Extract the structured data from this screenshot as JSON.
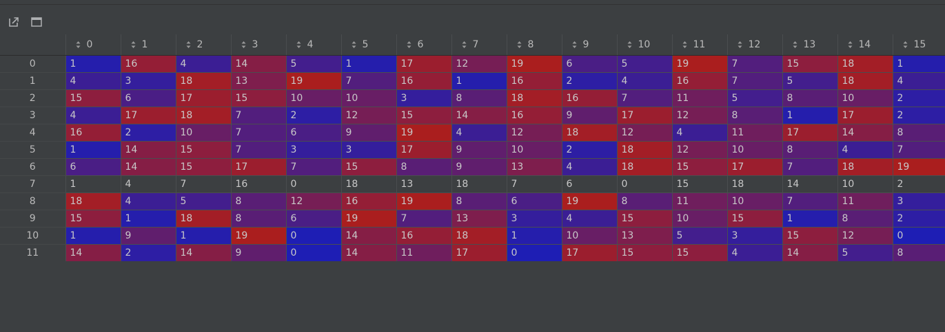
{
  "toolbar": {
    "open_in_window_icon": "external-open-icon",
    "maximize_icon": "window-maximize-icon"
  },
  "table": {
    "columns": [
      "0",
      "1",
      "2",
      "3",
      "4",
      "5",
      "6",
      "7",
      "8",
      "9",
      "10",
      "11",
      "12",
      "13",
      "14",
      "15"
    ],
    "row_labels": [
      "0",
      "1",
      "2",
      "3",
      "4",
      "5",
      "6",
      "7",
      "8",
      "9",
      "10",
      "11"
    ],
    "uncolored_rows": [
      7
    ],
    "rows": [
      [
        "1",
        "16",
        "4",
        "14",
        "5",
        "1",
        "17",
        "12",
        "19",
        "6",
        "5",
        "19",
        "7",
        "15",
        "18",
        "1"
      ],
      [
        "4",
        "3",
        "18",
        "13",
        "19",
        "7",
        "16",
        "1",
        "16",
        "2",
        "4",
        "16",
        "7",
        "5",
        "18",
        "4"
      ],
      [
        "15",
        "6",
        "17",
        "15",
        "10",
        "10",
        "3",
        "8",
        "18",
        "16",
        "7",
        "11",
        "5",
        "8",
        "10",
        "2"
      ],
      [
        "4",
        "17",
        "18",
        "7",
        "2",
        "12",
        "15",
        "14",
        "16",
        "9",
        "17",
        "12",
        "8",
        "1",
        "17",
        "2"
      ],
      [
        "16",
        "2",
        "10",
        "7",
        "6",
        "9",
        "19",
        "4",
        "12",
        "18",
        "12",
        "4",
        "11",
        "17",
        "14",
        "8"
      ],
      [
        "1",
        "14",
        "15",
        "7",
        "3",
        "3",
        "17",
        "9",
        "10",
        "2",
        "18",
        "12",
        "10",
        "8",
        "4",
        "7"
      ],
      [
        "6",
        "14",
        "15",
        "17",
        "7",
        "15",
        "8",
        "9",
        "13",
        "4",
        "18",
        "15",
        "17",
        "7",
        "18",
        "19"
      ],
      [
        "1",
        "4",
        "7",
        "16",
        "0",
        "18",
        "13",
        "18",
        "7",
        "6",
        "0",
        "15",
        "18",
        "14",
        "10",
        "2"
      ],
      [
        "18",
        "4",
        "5",
        "8",
        "12",
        "16",
        "19",
        "8",
        "6",
        "19",
        "8",
        "11",
        "10",
        "7",
        "11",
        "3"
      ],
      [
        "15",
        "1",
        "18",
        "8",
        "6",
        "19",
        "7",
        "13",
        "3",
        "4",
        "15",
        "10",
        "15",
        "1",
        "8",
        "2"
      ],
      [
        "1",
        "9",
        "1",
        "19",
        "0",
        "14",
        "16",
        "18",
        "1",
        "10",
        "13",
        "5",
        "3",
        "15",
        "12",
        "0"
      ],
      [
        "14",
        "2",
        "14",
        "9",
        "0",
        "14",
        "11",
        "17",
        "0",
        "17",
        "15",
        "15",
        "4",
        "14",
        "5",
        "8"
      ]
    ]
  },
  "colors": {
    "low": "#1e1eb4",
    "high": "#aa1e1e",
    "background": "#3c3f41"
  }
}
